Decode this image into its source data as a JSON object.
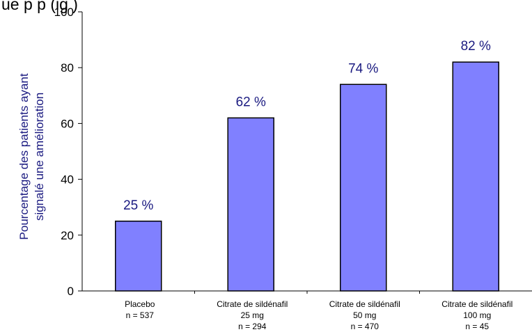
{
  "top_fragment": "ue p   p   (ig     )",
  "chart_data": {
    "type": "bar",
    "categories": [
      [
        "Placebo",
        "n = 537"
      ],
      [
        "Citrate de sildénafil",
        "25 mg",
        "n = 294"
      ],
      [
        "Citrate de sildénafil",
        "50 mg",
        "n = 470"
      ],
      [
        "Citrate de sildénafil",
        "100 mg",
        "n = 45"
      ]
    ],
    "values": [
      25,
      62,
      74,
      82
    ],
    "data_labels": [
      "25 %",
      "62 %",
      "74 %",
      "82 %"
    ],
    "ylabel": [
      "Pourcentage des patients ayant",
      "signalé une amélioration"
    ],
    "ylim": [
      0,
      100
    ],
    "yticks": [
      0,
      20,
      40,
      60,
      80,
      100
    ],
    "bar_color": "#8080ff",
    "label_color": "#1a1a80",
    "grid": false
  }
}
